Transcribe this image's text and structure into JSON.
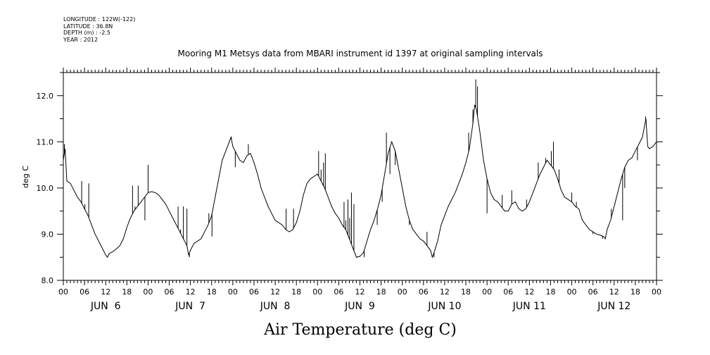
{
  "meta": {
    "longitude": "LONGITUDE : 122W(-122)",
    "latitude": "LATITUDE : 36.8N",
    "depth": "DEPTH (m) : -2.5",
    "year": "YEAR : 2012"
  },
  "chart_data": {
    "type": "line",
    "title": "Mooring M1 Metsys data from MBARI instrument id 1397 at original sampling intervals",
    "xlabel": "Air Temperature (deg C)",
    "ylabel": "deg C",
    "ylim": [
      8.0,
      12.5
    ],
    "yticks": [
      8.0,
      9.0,
      10.0,
      11.0,
      12.0
    ],
    "ytick_labels": [
      "8.0",
      "9.0",
      "10.0",
      "11.0",
      "12.0"
    ],
    "xlim_hours": [
      0,
      168
    ],
    "hour_labels": [
      "00",
      "06",
      "12",
      "18",
      "00",
      "06",
      "12",
      "18",
      "00",
      "06",
      "12",
      "18",
      "00",
      "06",
      "12",
      "18",
      "00",
      "06",
      "12",
      "18",
      "00",
      "06",
      "12",
      "18",
      "00",
      "06",
      "12",
      "18",
      "00"
    ],
    "date_labels": [
      "JUN  6",
      "JUN  7",
      "JUN  8",
      "JUN  9",
      "JUN 10",
      "JUN 11",
      "JUN 12"
    ],
    "grid": false,
    "series": [
      {
        "color": "#000000",
        "points": [
          [
            0,
            10.6
          ],
          [
            0.5,
            10.85
          ],
          [
            1,
            10.15
          ],
          [
            2,
            10.1
          ],
          [
            3,
            9.95
          ],
          [
            4,
            9.8
          ],
          [
            5,
            9.7
          ],
          [
            6,
            9.55
          ],
          [
            7,
            9.4
          ],
          [
            8,
            9.2
          ],
          [
            9,
            9.0
          ],
          [
            10,
            8.85
          ],
          [
            11,
            8.7
          ],
          [
            12,
            8.55
          ],
          [
            12.5,
            8.5
          ],
          [
            13,
            8.58
          ],
          [
            14,
            8.62
          ],
          [
            15,
            8.68
          ],
          [
            16,
            8.75
          ],
          [
            17,
            8.9
          ],
          [
            18,
            9.15
          ],
          [
            19,
            9.35
          ],
          [
            20,
            9.5
          ],
          [
            21,
            9.6
          ],
          [
            22,
            9.7
          ],
          [
            23,
            9.8
          ],
          [
            24,
            9.9
          ],
          [
            25,
            9.92
          ],
          [
            26,
            9.9
          ],
          [
            27,
            9.85
          ],
          [
            28,
            9.75
          ],
          [
            29,
            9.65
          ],
          [
            30,
            9.5
          ],
          [
            31,
            9.35
          ],
          [
            32,
            9.2
          ],
          [
            33,
            9.05
          ],
          [
            34,
            8.9
          ],
          [
            35,
            8.75
          ],
          [
            35.5,
            8.55
          ],
          [
            36,
            8.65
          ],
          [
            37,
            8.8
          ],
          [
            38,
            8.85
          ],
          [
            39,
            8.9
          ],
          [
            40,
            9.05
          ],
          [
            41,
            9.2
          ],
          [
            42,
            9.4
          ],
          [
            43,
            9.8
          ],
          [
            44,
            10.2
          ],
          [
            45,
            10.6
          ],
          [
            46,
            10.8
          ],
          [
            47,
            11.0
          ],
          [
            47.5,
            11.1
          ],
          [
            48,
            10.9
          ],
          [
            49,
            10.75
          ],
          [
            50,
            10.6
          ],
          [
            51,
            10.55
          ],
          [
            52,
            10.7
          ],
          [
            53,
            10.75
          ],
          [
            54,
            10.55
          ],
          [
            55,
            10.3
          ],
          [
            56,
            10.0
          ],
          [
            57,
            9.8
          ],
          [
            58,
            9.6
          ],
          [
            59,
            9.45
          ],
          [
            60,
            9.3
          ],
          [
            61,
            9.25
          ],
          [
            62,
            9.2
          ],
          [
            63,
            9.1
          ],
          [
            64,
            9.05
          ],
          [
            65,
            9.1
          ],
          [
            66,
            9.25
          ],
          [
            67,
            9.5
          ],
          [
            68,
            9.85
          ],
          [
            69,
            10.1
          ],
          [
            70,
            10.2
          ],
          [
            71,
            10.25
          ],
          [
            72,
            10.3
          ],
          [
            73,
            10.15
          ],
          [
            74,
            10.0
          ],
          [
            75,
            9.8
          ],
          [
            76,
            9.6
          ],
          [
            77,
            9.45
          ],
          [
            78,
            9.35
          ],
          [
            79,
            9.2
          ],
          [
            80,
            9.1
          ],
          [
            81,
            8.9
          ],
          [
            82,
            8.7
          ],
          [
            83,
            8.5
          ],
          [
            84,
            8.52
          ],
          [
            85,
            8.6
          ],
          [
            86,
            8.85
          ],
          [
            87,
            9.1
          ],
          [
            88,
            9.3
          ],
          [
            89,
            9.55
          ],
          [
            90,
            9.85
          ],
          [
            91,
            10.3
          ],
          [
            92,
            10.75
          ],
          [
            93,
            11.0
          ],
          [
            94,
            10.8
          ],
          [
            95,
            10.4
          ],
          [
            96,
            10.0
          ],
          [
            97,
            9.6
          ],
          [
            98,
            9.3
          ],
          [
            99,
            9.1
          ],
          [
            100,
            9.0
          ],
          [
            101,
            8.9
          ],
          [
            102,
            8.85
          ],
          [
            103,
            8.75
          ],
          [
            104,
            8.65
          ],
          [
            104.5,
            8.5
          ],
          [
            105,
            8.6
          ],
          [
            106,
            8.85
          ],
          [
            107,
            9.2
          ],
          [
            108,
            9.4
          ],
          [
            109,
            9.6
          ],
          [
            110,
            9.75
          ],
          [
            111,
            9.9
          ],
          [
            112,
            10.1
          ],
          [
            113,
            10.3
          ],
          [
            114,
            10.55
          ],
          [
            115,
            10.85
          ],
          [
            116,
            11.4
          ],
          [
            116.5,
            11.8
          ],
          [
            117,
            11.7
          ],
          [
            118,
            11.2
          ],
          [
            119,
            10.6
          ],
          [
            120,
            10.2
          ],
          [
            121,
            9.9
          ],
          [
            122,
            9.75
          ],
          [
            123,
            9.7
          ],
          [
            124,
            9.6
          ],
          [
            125,
            9.5
          ],
          [
            126,
            9.5
          ],
          [
            127,
            9.65
          ],
          [
            128,
            9.7
          ],
          [
            129,
            9.55
          ],
          [
            130,
            9.5
          ],
          [
            131,
            9.55
          ],
          [
            132,
            9.7
          ],
          [
            133,
            9.9
          ],
          [
            134,
            10.1
          ],
          [
            135,
            10.3
          ],
          [
            136,
            10.45
          ],
          [
            137,
            10.6
          ],
          [
            138,
            10.5
          ],
          [
            139,
            10.4
          ],
          [
            140,
            10.2
          ],
          [
            141,
            9.95
          ],
          [
            142,
            9.8
          ],
          [
            143,
            9.75
          ],
          [
            144,
            9.7
          ],
          [
            145,
            9.6
          ],
          [
            146,
            9.55
          ],
          [
            147,
            9.3
          ],
          [
            148,
            9.2
          ],
          [
            149,
            9.1
          ],
          [
            150,
            9.05
          ],
          [
            151,
            9.0
          ],
          [
            152,
            8.98
          ],
          [
            153,
            8.95
          ],
          [
            153.5,
            8.9
          ],
          [
            154,
            9.1
          ],
          [
            155,
            9.3
          ],
          [
            156,
            9.6
          ],
          [
            157,
            9.9
          ],
          [
            158,
            10.2
          ],
          [
            159,
            10.45
          ],
          [
            160,
            10.6
          ],
          [
            161,
            10.65
          ],
          [
            162,
            10.8
          ],
          [
            163,
            10.95
          ],
          [
            164,
            11.1
          ],
          [
            165,
            11.5
          ],
          [
            165.5,
            10.9
          ],
          [
            166,
            10.85
          ],
          [
            167,
            10.9
          ],
          [
            168,
            11.0
          ]
        ],
        "spikes": [
          [
            0.3,
            10.95
          ],
          [
            5.2,
            10.15
          ],
          [
            6.1,
            9.65
          ],
          [
            7.2,
            10.1
          ],
          [
            19.6,
            10.05
          ],
          [
            20.3,
            9.6
          ],
          [
            21.2,
            10.05
          ],
          [
            23.1,
            9.3
          ],
          [
            24.0,
            10.5
          ],
          [
            32.5,
            9.6
          ],
          [
            33.2,
            9.1
          ],
          [
            34.0,
            9.6
          ],
          [
            35.0,
            9.55
          ],
          [
            35.7,
            8.5
          ],
          [
            41.2,
            9.45
          ],
          [
            42.1,
            8.95
          ],
          [
            47.6,
            11.1
          ],
          [
            48.7,
            10.45
          ],
          [
            52.4,
            10.95
          ],
          [
            63.1,
            9.55
          ],
          [
            65.2,
            9.55
          ],
          [
            72.3,
            10.8
          ],
          [
            73.0,
            10.4
          ],
          [
            73.7,
            10.55
          ],
          [
            74.2,
            10.75
          ],
          [
            79.5,
            9.7
          ],
          [
            80.0,
            9.3
          ],
          [
            80.6,
            9.75
          ],
          [
            81.1,
            9.35
          ],
          [
            81.6,
            9.9
          ],
          [
            82.3,
            9.65
          ],
          [
            83.5,
            8.5
          ],
          [
            85.2,
            8.5
          ],
          [
            88.9,
            9.2
          ],
          [
            90.3,
            9.7
          ],
          [
            91.5,
            11.2
          ],
          [
            92.5,
            10.3
          ],
          [
            94.0,
            10.5
          ],
          [
            98.0,
            9.2
          ],
          [
            103.0,
            9.05
          ],
          [
            105.0,
            8.5
          ],
          [
            114.8,
            11.2
          ],
          [
            116.0,
            11.7
          ],
          [
            116.8,
            12.35
          ],
          [
            117.3,
            12.2
          ],
          [
            120.0,
            9.45
          ],
          [
            124.3,
            9.85
          ],
          [
            127.0,
            9.95
          ],
          [
            131.2,
            9.75
          ],
          [
            134.5,
            10.55
          ],
          [
            136.6,
            10.65
          ],
          [
            138.2,
            10.8
          ],
          [
            138.8,
            11.0
          ],
          [
            140.4,
            10.4
          ],
          [
            144.0,
            9.9
          ],
          [
            145.3,
            9.7
          ],
          [
            150.0,
            9.0
          ],
          [
            152.7,
            8.9
          ],
          [
            155.2,
            9.55
          ],
          [
            156.2,
            9.65
          ],
          [
            158.4,
            9.3
          ],
          [
            159.0,
            10.0
          ],
          [
            162.6,
            10.6
          ],
          [
            164.9,
            11.55
          ]
        ]
      }
    ]
  }
}
